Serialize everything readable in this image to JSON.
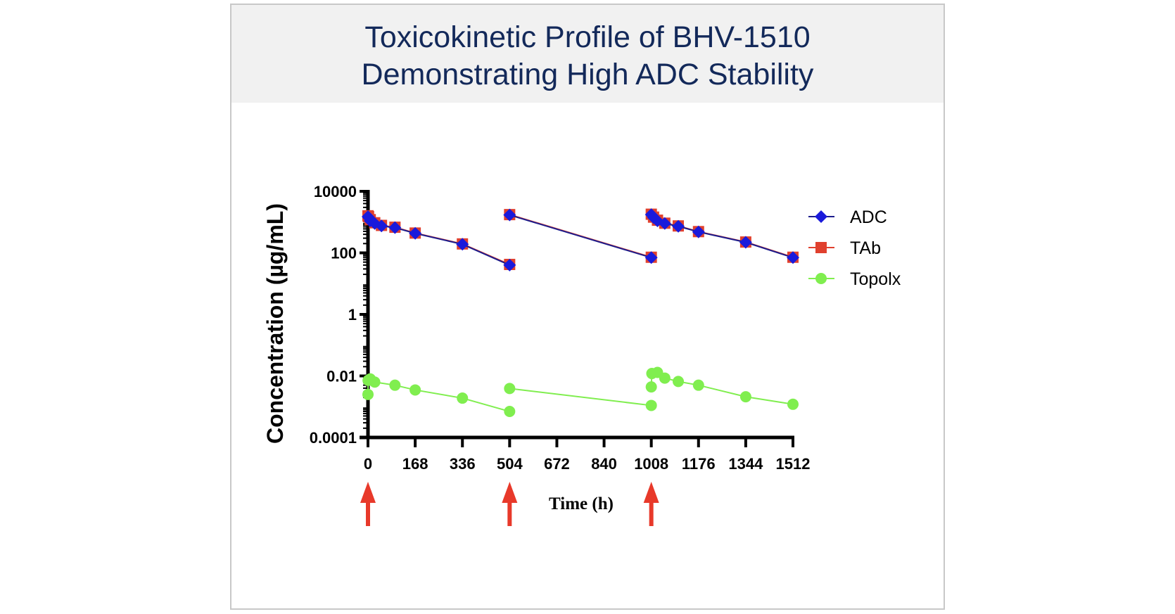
{
  "title": [
    "Toxicokinetic Profile of BHV-1510",
    "Demonstrating High ADC Stability"
  ],
  "chart_data": {
    "type": "line",
    "xlabel": "Time (h)",
    "ylabel": "Concentration (µg/mL)",
    "xlim": [
      0,
      1512
    ],
    "ylim": [
      0.0001,
      10000
    ],
    "yscale": "log",
    "x_ticks": [
      "0",
      "168",
      "336",
      "504",
      "672",
      "840",
      "1008",
      "1176",
      "1344",
      "1512"
    ],
    "y_ticks": [
      "0.0001",
      "0.01",
      "1",
      "100",
      "10000"
    ],
    "grid": false,
    "legend_position": "right",
    "dose_arrows_at": [
      0,
      504,
      1008
    ],
    "colors": {
      "ADC": "#1a1adb",
      "TAb": "#e0402e",
      "Topolx": "#80ee4f",
      "arrow": "#e8392a",
      "ADC_line": "#1c1c8c"
    },
    "series": [
      {
        "name": "ADC",
        "marker": "diamond",
        "segments": [
          [
            [
              0,
              1500
            ],
            [
              2,
              1400
            ],
            [
              8,
              1100
            ],
            [
              24,
              900
            ],
            [
              48,
              750
            ],
            [
              96,
              660
            ],
            [
              168,
              430
            ],
            [
              336,
              190
            ],
            [
              504,
              40
            ]
          ],
          [
            [
              504,
              1700
            ],
            [
              1008,
              70
            ]
          ],
          [
            [
              1008,
              1750
            ],
            [
              1016,
              1400
            ],
            [
              1030,
              1100
            ],
            [
              1056,
              900
            ],
            [
              1104,
              730
            ],
            [
              1176,
              480
            ],
            [
              1344,
              220
            ],
            [
              1512,
              70
            ]
          ]
        ]
      },
      {
        "name": "TAb",
        "marker": "square",
        "segments": [
          [
            [
              0,
              1600
            ],
            [
              2,
              1500
            ],
            [
              8,
              1200
            ],
            [
              24,
              950
            ],
            [
              48,
              780
            ],
            [
              96,
              680
            ],
            [
              168,
              440
            ],
            [
              336,
              195
            ],
            [
              504,
              42
            ]
          ],
          [
            [
              504,
              1750
            ],
            [
              1008,
              72
            ]
          ],
          [
            [
              1008,
              1800
            ],
            [
              1016,
              1450
            ],
            [
              1030,
              1150
            ],
            [
              1056,
              920
            ],
            [
              1104,
              750
            ],
            [
              1176,
              490
            ],
            [
              1344,
              225
            ],
            [
              1512,
              72
            ]
          ]
        ]
      },
      {
        "name": "Topolx",
        "marker": "circle",
        "segments": [
          [
            [
              0,
              0.0025
            ],
            [
              0.5,
              0.0072
            ],
            [
              8,
              0.008
            ],
            [
              24,
              0.0063
            ],
            [
              96,
              0.005
            ],
            [
              168,
              0.0035
            ],
            [
              336,
              0.0019
            ],
            [
              504,
              0.0007
            ]
          ],
          [
            [
              504,
              0.0039
            ],
            [
              1008,
              0.0011
            ]
          ],
          [
            [
              1008,
              0.0044
            ],
            [
              1010,
              0.012
            ],
            [
              1030,
              0.013
            ],
            [
              1056,
              0.0085
            ],
            [
              1104,
              0.0066
            ],
            [
              1176,
              0.005
            ],
            [
              1344,
              0.0021
            ],
            [
              1512,
              0.0012
            ]
          ]
        ]
      }
    ]
  }
}
